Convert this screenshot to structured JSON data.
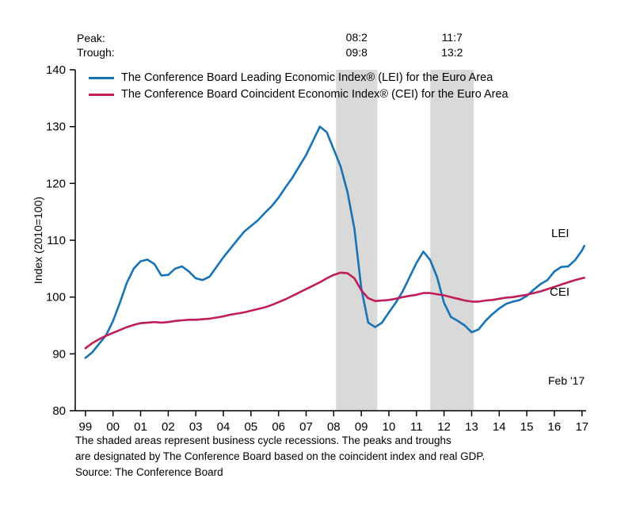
{
  "annotations": {
    "peak_label": "Peak:",
    "trough_label": "Trough:",
    "lei_label": "LEI",
    "cei_label": "CEI",
    "date_label": "Feb '17"
  },
  "legend": {
    "lei": "The Conference Board Leading Economic Index® (LEI) for the Euro Area",
    "cei": "The Conference Board Coincident Economic Index® (CEI) for the Euro Area"
  },
  "axis": {
    "y_title": "Index (2010=100)",
    "y_ticks": [
      80,
      90,
      100,
      110,
      120,
      130,
      140
    ],
    "x_tick_values": [
      1999,
      2000,
      2001,
      2002,
      2003,
      2004,
      2005,
      2006,
      2007,
      2008,
      2009,
      2010,
      2011,
      2012,
      2013,
      2014,
      2015,
      2016,
      2017
    ],
    "x_tick_labels": [
      "99",
      "00",
      "01",
      "02",
      "03",
      "04",
      "05",
      "06",
      "07",
      "08",
      "09",
      "10",
      "11",
      "12",
      "13",
      "14",
      "15",
      "16",
      "17"
    ]
  },
  "footnotes": {
    "lines": [
      "The shaded areas represent business cycle recessions. The peaks and troughs",
      "are designated by The Conference Board based on the coincident index and real GDP.",
      "Source: The Conference Board"
    ]
  },
  "colors": {
    "lei": "#1673b6",
    "cei": "#bf1d5b",
    "recession_band": "#d9d9d9",
    "axis": "#000000"
  },
  "chart_data": {
    "type": "line",
    "title": "",
    "xlabel": "",
    "ylabel": "Index (2010=100)",
    "ylim": [
      80,
      140
    ],
    "xlim": [
      1998.63,
      2017.15
    ],
    "grid": false,
    "legend_position": "top-left-inside",
    "x": [
      1999.0,
      1999.25,
      1999.5,
      1999.75,
      2000.0,
      2000.25,
      2000.5,
      2000.75,
      2001.0,
      2001.25,
      2001.5,
      2001.75,
      2002.0,
      2002.25,
      2002.5,
      2002.75,
      2003.0,
      2003.25,
      2003.5,
      2003.75,
      2004.0,
      2004.25,
      2004.5,
      2004.75,
      2005.0,
      2005.25,
      2005.5,
      2005.75,
      2006.0,
      2006.25,
      2006.5,
      2006.75,
      2007.0,
      2007.25,
      2007.5,
      2007.75,
      2008.0,
      2008.25,
      2008.5,
      2008.75,
      2009.0,
      2009.25,
      2009.5,
      2009.75,
      2010.0,
      2010.25,
      2010.5,
      2010.75,
      2011.0,
      2011.25,
      2011.5,
      2011.75,
      2012.0,
      2012.25,
      2012.5,
      2012.75,
      2013.0,
      2013.25,
      2013.5,
      2013.75,
      2014.0,
      2014.25,
      2014.5,
      2014.75,
      2015.0,
      2015.25,
      2015.5,
      2015.75,
      2016.0,
      2016.25,
      2016.5,
      2016.75,
      2017.0,
      2017.083
    ],
    "series": [
      {
        "name": "LEI",
        "label": "The Conference Board Leading Economic Index® (LEI) for the Euro Area",
        "color": "#1673b6",
        "values": [
          89.3,
          90.3,
          91.8,
          93.3,
          95.8,
          99.0,
          102.5,
          105.0,
          106.3,
          106.6,
          105.8,
          103.8,
          103.9,
          105.0,
          105.4,
          104.5,
          103.3,
          103.0,
          103.6,
          105.3,
          107.0,
          108.5,
          110.0,
          111.5,
          112.5,
          113.5,
          114.8,
          116.0,
          117.5,
          119.3,
          121.0,
          123.0,
          125.0,
          127.5,
          130.0,
          129.0,
          126.0,
          123.0,
          118.5,
          112.0,
          101.5,
          95.5,
          94.7,
          95.5,
          97.3,
          99.0,
          101.0,
          103.5,
          106.0,
          108.0,
          106.5,
          103.5,
          99.0,
          96.5,
          95.8,
          95.0,
          93.8,
          94.3,
          95.8,
          97.0,
          98.0,
          98.8,
          99.2,
          99.5,
          100.2,
          101.3,
          102.3,
          103.0,
          104.5,
          105.3,
          105.4,
          106.5,
          108.2,
          109.0
        ]
      },
      {
        "name": "CEI",
        "label": "The Conference Board Coincident Economic Index® (CEI) for the Euro Area",
        "color": "#bf1d5b",
        "values": [
          91.0,
          91.9,
          92.6,
          93.2,
          93.7,
          94.2,
          94.7,
          95.1,
          95.4,
          95.5,
          95.6,
          95.5,
          95.6,
          95.8,
          95.9,
          96.0,
          96.0,
          96.1,
          96.2,
          96.4,
          96.6,
          96.9,
          97.1,
          97.3,
          97.6,
          97.9,
          98.2,
          98.6,
          99.1,
          99.6,
          100.2,
          100.8,
          101.4,
          102.0,
          102.6,
          103.3,
          103.9,
          104.3,
          104.2,
          103.3,
          101.2,
          99.8,
          99.3,
          99.4,
          99.5,
          99.7,
          100.0,
          100.2,
          100.4,
          100.7,
          100.7,
          100.5,
          100.3,
          100.0,
          99.7,
          99.4,
          99.2,
          99.2,
          99.4,
          99.5,
          99.7,
          99.9,
          100.0,
          100.2,
          100.4,
          100.7,
          101.0,
          101.4,
          101.8,
          102.2,
          102.6,
          103.0,
          103.3,
          103.4
        ]
      }
    ],
    "recession_bands": [
      {
        "start": 2008.083,
        "end": 2009.583,
        "peak_label": "08:2",
        "trough_label": "09:8"
      },
      {
        "start": 2011.5,
        "end": 2013.083,
        "peak_label": "11:7",
        "trough_label": "13:2"
      }
    ]
  }
}
